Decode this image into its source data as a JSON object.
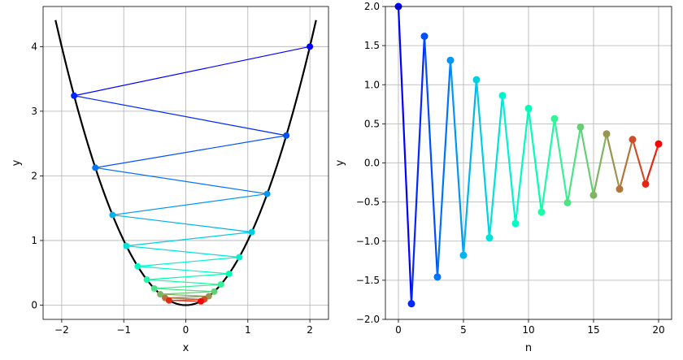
{
  "chart_data": [
    {
      "type": "line",
      "subtype": "parabola-with-iterate-path",
      "xlabel": "x",
      "ylabel": "y",
      "xlim": [
        -2.3,
        2.3
      ],
      "ylim": [
        -0.22,
        4.62
      ],
      "xticks": [
        {
          "value": -2,
          "label": "−2"
        },
        {
          "value": -1,
          "label": "−1"
        },
        {
          "value": 0,
          "label": "0"
        },
        {
          "value": 1,
          "label": "1"
        },
        {
          "value": 2,
          "label": "2"
        }
      ],
      "yticks": [
        {
          "value": 0,
          "label": "0"
        },
        {
          "value": 1,
          "label": "1"
        },
        {
          "value": 2,
          "label": "2"
        },
        {
          "value": 3,
          "label": "3"
        },
        {
          "value": 4,
          "label": "4"
        }
      ],
      "grid": true,
      "curve": {
        "function": "y = x^2",
        "x_range": [
          -2.1,
          2.1
        ],
        "color": "#000000"
      },
      "points_x": [
        2.0,
        -1.8,
        1.62,
        -1.458,
        1.312,
        -1.181,
        1.063,
        -0.957,
        0.861,
        -0.775,
        0.697,
        -0.628,
        0.565,
        -0.508,
        0.458,
        -0.412,
        0.371,
        -0.334,
        0.3,
        -0.27,
        0.243
      ],
      "colormap": "rainbow"
    },
    {
      "type": "line",
      "subtype": "sequence",
      "xlabel": "n",
      "ylabel": "y",
      "xlim": [
        -1.0,
        21.0
      ],
      "ylim": [
        -2.0,
        2.0
      ],
      "xticks": [
        {
          "value": 0,
          "label": "0"
        },
        {
          "value": 5,
          "label": "5"
        },
        {
          "value": 10,
          "label": "10"
        },
        {
          "value": 15,
          "label": "15"
        },
        {
          "value": 20,
          "label": "20"
        }
      ],
      "yticks": [
        {
          "value": -2.0,
          "label": "−2.0"
        },
        {
          "value": -1.5,
          "label": "−1.5"
        },
        {
          "value": -1.0,
          "label": "−1.0"
        },
        {
          "value": -0.5,
          "label": "−0.5"
        },
        {
          "value": 0.0,
          "label": "0.0"
        },
        {
          "value": 0.5,
          "label": "0.5"
        },
        {
          "value": 1.0,
          "label": "1.0"
        },
        {
          "value": 1.5,
          "label": "1.5"
        },
        {
          "value": 2.0,
          "label": "2.0"
        }
      ],
      "grid": true,
      "x": [
        0,
        1,
        2,
        3,
        4,
        5,
        6,
        7,
        8,
        9,
        10,
        11,
        12,
        13,
        14,
        15,
        16,
        17,
        18,
        19,
        20
      ],
      "values": [
        2.0,
        -1.8,
        1.62,
        -1.458,
        1.312,
        -1.181,
        1.063,
        -0.957,
        0.861,
        -0.775,
        0.697,
        -0.628,
        0.565,
        -0.508,
        0.458,
        -0.412,
        0.371,
        -0.334,
        0.3,
        -0.27,
        0.243
      ],
      "colormap": "rainbow"
    }
  ]
}
